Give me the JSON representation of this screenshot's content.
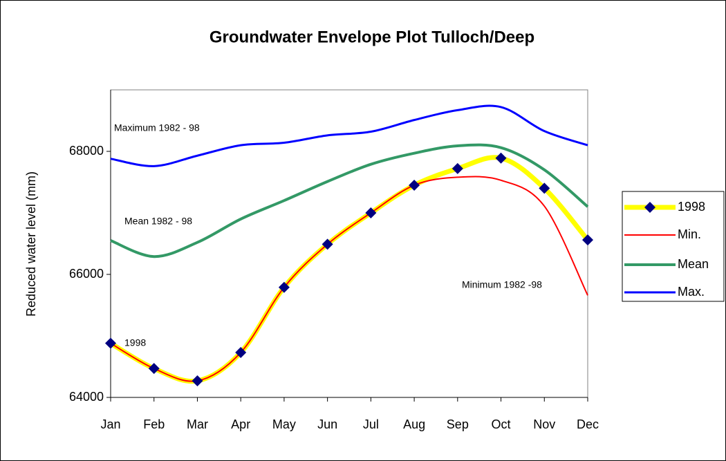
{
  "chart_data": {
    "type": "line",
    "title": "Groundwater Envelope Plot Tulloch/Deep",
    "y_label": "Reduced water level (mm)",
    "categories": [
      "Jan",
      "Feb",
      "Mar",
      "Apr",
      "May",
      "Jun",
      "Jul",
      "Aug",
      "Sep",
      "Oct",
      "Nov",
      "Dec"
    ],
    "ylim": [
      64000,
      69000
    ],
    "yticks": [
      64000,
      66000,
      68000
    ],
    "smooth": true,
    "series": [
      {
        "name": "1998",
        "color": "#ffff00",
        "marker": "diamond",
        "marker_color": "#000080",
        "values": [
          64880,
          64470,
          64270,
          64730,
          65790,
          66490,
          67000,
          67450,
          67720,
          67890,
          67400,
          66560
        ]
      },
      {
        "name": "Min.",
        "color": "#ff0000",
        "values": [
          64880,
          64470,
          64270,
          64730,
          65790,
          66490,
          67000,
          67450,
          67580,
          67530,
          67110,
          65660
        ]
      },
      {
        "name": "Mean",
        "color": "#339966",
        "values": [
          66550,
          66290,
          66520,
          66900,
          67200,
          67510,
          67790,
          67970,
          68090,
          68060,
          67700,
          67100
        ]
      },
      {
        "name": "Max.",
        "color": "#0000ff",
        "values": [
          67880,
          67760,
          67930,
          68100,
          68140,
          68260,
          68320,
          68510,
          68670,
          68720,
          68330,
          68100
        ]
      }
    ],
    "annotations": [
      "Maximum 1982 - 98",
      "Mean 1982 - 98",
      "Minimum 1982 -98",
      "1998"
    ]
  }
}
